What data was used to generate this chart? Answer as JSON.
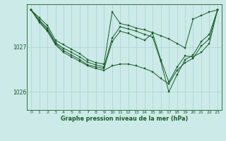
{
  "bg_color": "#cceae8",
  "grid_color": "#aad4d0",
  "line_color": "#1a5c2a",
  "marker_color": "#1a5c2a",
  "title": "Graphe pression niveau de la mer (hPa)",
  "yticks": [
    1026,
    1027
  ],
  "ylim": [
    1025.6,
    1027.95
  ],
  "xlim": [
    -0.5,
    23.5
  ],
  "series": [
    [
      1027.82,
      1027.65,
      1027.48,
      1027.15,
      1027.05,
      1026.95,
      1026.85,
      1026.72,
      1026.65,
      1026.62,
      1027.78,
      1027.52,
      1027.48,
      1027.42,
      1027.38,
      1027.32,
      1027.25,
      1027.18,
      1027.08,
      1026.98,
      1027.62,
      1027.7,
      1027.78,
      1027.82
    ],
    [
      1027.82,
      1027.6,
      1027.42,
      1027.1,
      1026.97,
      1026.88,
      1026.78,
      1026.66,
      1026.6,
      1026.56,
      1027.2,
      1027.45,
      1027.4,
      1027.35,
      1027.28,
      1027.22,
      1026.68,
      1026.0,
      1026.38,
      1026.72,
      1026.82,
      1027.12,
      1027.28,
      1027.82
    ],
    [
      1027.82,
      1027.58,
      1027.38,
      1027.08,
      1026.92,
      1026.82,
      1026.72,
      1026.6,
      1026.56,
      1026.52,
      1027.12,
      1027.35,
      1027.3,
      1027.22,
      1027.15,
      1027.3,
      1026.72,
      1026.22,
      1026.55,
      1026.8,
      1026.78,
      1026.88,
      1027.08,
      1027.82
    ],
    [
      1027.82,
      1027.55,
      1027.35,
      1027.05,
      1026.88,
      1026.78,
      1026.68,
      1026.58,
      1026.52,
      1026.48,
      1026.58,
      1026.62,
      1026.62,
      1026.58,
      1026.52,
      1026.45,
      1026.3,
      1026.18,
      1026.48,
      1026.65,
      1026.75,
      1027.02,
      1027.18,
      1027.82
    ]
  ],
  "figsize": [
    3.2,
    2.0
  ],
  "dpi": 100
}
